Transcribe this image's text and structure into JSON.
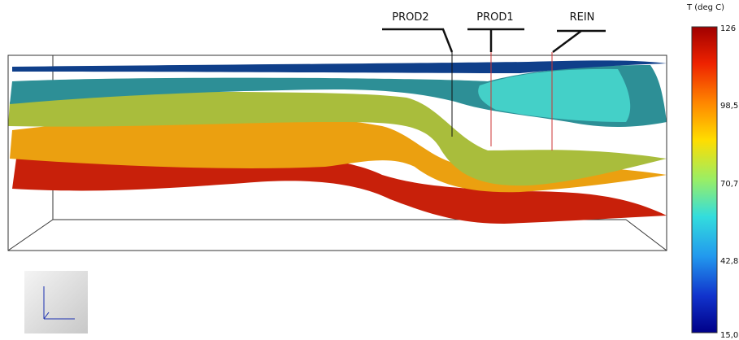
{
  "wells": [
    {
      "label": "PROD2"
    },
    {
      "label": "PROD1"
    },
    {
      "label": "REIN"
    }
  ],
  "colorbar": {
    "title": "T (deg C)",
    "ticks": [
      "126",
      "98,5",
      "70,7",
      "42,8",
      "15,0"
    ]
  }
}
